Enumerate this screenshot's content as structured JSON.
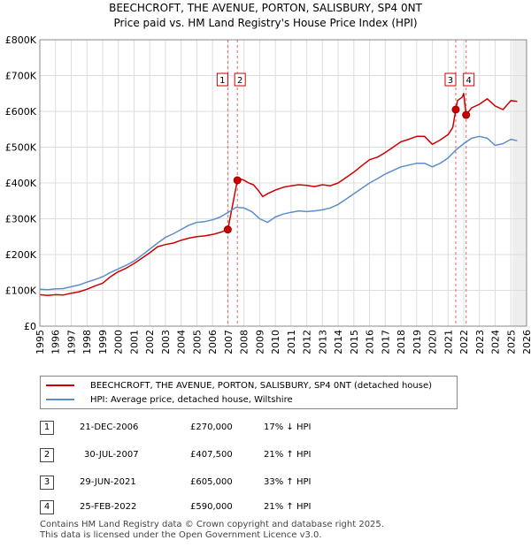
{
  "chart_data": {
    "type": "line",
    "title": "BEECHCROFT, THE AVENUE, PORTON, SALISBURY, SP4 0NT",
    "subtitle": "Price paid vs. HM Land Registry's House Price Index (HPI)",
    "y_ticks": [
      "£0",
      "£100K",
      "£200K",
      "£300K",
      "£400K",
      "£500K",
      "£600K",
      "£700K",
      "£800K"
    ],
    "x_ticks": [
      "1995",
      "1996",
      "1997",
      "1998",
      "1999",
      "2000",
      "2001",
      "2002",
      "2003",
      "2004",
      "2005",
      "2006",
      "2007",
      "2008",
      "2009",
      "2010",
      "2011",
      "2012",
      "2013",
      "2014",
      "2015",
      "2016",
      "2017",
      "2018",
      "2019",
      "2020",
      "2021",
      "2022",
      "2023",
      "2024",
      "2025",
      "2026"
    ],
    "ylim": [
      0,
      800000
    ],
    "xlim": [
      1995,
      2026
    ],
    "grid": true,
    "series": [
      {
        "name": "BEECHCROFT, THE AVENUE, PORTON, SALISBURY, SP4 0NT (detached house)",
        "color": "#cc0000",
        "x": [
          1995.0,
          1995.5,
          1996.0,
          1996.5,
          1997.0,
          1997.5,
          1998.0,
          1998.5,
          1999.0,
          1999.5,
          2000.0,
          2000.5,
          2001.0,
          2001.5,
          2002.0,
          2002.5,
          2003.0,
          2003.5,
          2004.0,
          2004.5,
          2005.0,
          2005.5,
          2006.0,
          2006.5,
          2006.97,
          2007.0,
          2007.58,
          2007.7,
          2008.0,
          2008.3,
          2008.6,
          2008.9,
          2009.2,
          2009.5,
          2010.0,
          2010.5,
          2011.0,
          2011.5,
          2012.0,
          2012.5,
          2013.0,
          2013.5,
          2014.0,
          2014.5,
          2015.0,
          2015.5,
          2016.0,
          2016.5,
          2017.0,
          2017.5,
          2018.0,
          2018.5,
          2019.0,
          2019.5,
          2020.0,
          2020.5,
          2021.0,
          2021.3,
          2021.49,
          2021.6,
          2021.9,
          2022.0,
          2022.15,
          2022.5,
          2023.0,
          2023.5,
          2024.0,
          2024.5,
          2025.0,
          2025.4
        ],
        "values": [
          88000,
          86000,
          88000,
          87000,
          92000,
          96000,
          103000,
          112000,
          120000,
          138000,
          152000,
          162000,
          175000,
          190000,
          205000,
          222000,
          228000,
          232000,
          240000,
          246000,
          250000,
          252000,
          256000,
          262000,
          270000,
          275000,
          407500,
          412000,
          408000,
          400000,
          395000,
          380000,
          362000,
          370000,
          380000,
          388000,
          392000,
          395000,
          393000,
          390000,
          395000,
          392000,
          400000,
          415000,
          430000,
          448000,
          465000,
          472000,
          485000,
          500000,
          515000,
          522000,
          530000,
          530000,
          508000,
          520000,
          535000,
          555000,
          605000,
          630000,
          640000,
          650000,
          590000,
          610000,
          620000,
          635000,
          615000,
          605000,
          630000,
          628000
        ]
      },
      {
        "name": "HPI: Average price, detached house, Wiltshire",
        "color": "#5b8ec9",
        "x": [
          1995.0,
          1995.5,
          1996.0,
          1996.5,
          1997.0,
          1997.5,
          1998.0,
          1998.5,
          1999.0,
          1999.5,
          2000.0,
          2000.5,
          2001.0,
          2001.5,
          2002.0,
          2002.5,
          2003.0,
          2003.5,
          2004.0,
          2004.5,
          2005.0,
          2005.5,
          2006.0,
          2006.5,
          2007.0,
          2007.5,
          2008.0,
          2008.5,
          2009.0,
          2009.5,
          2010.0,
          2010.5,
          2011.0,
          2011.5,
          2012.0,
          2012.5,
          2013.0,
          2013.5,
          2014.0,
          2014.5,
          2015.0,
          2015.5,
          2016.0,
          2016.5,
          2017.0,
          2017.5,
          2018.0,
          2018.5,
          2019.0,
          2019.5,
          2020.0,
          2020.5,
          2021.0,
          2021.5,
          2022.0,
          2022.5,
          2023.0,
          2023.5,
          2024.0,
          2024.5,
          2025.0,
          2025.4
        ],
        "values": [
          103000,
          102000,
          104000,
          105000,
          110000,
          115000,
          123000,
          130000,
          138000,
          150000,
          160000,
          170000,
          182000,
          198000,
          215000,
          232000,
          248000,
          258000,
          270000,
          282000,
          290000,
          292000,
          297000,
          305000,
          318000,
          332000,
          330000,
          320000,
          300000,
          290000,
          305000,
          313000,
          318000,
          322000,
          320000,
          322000,
          325000,
          330000,
          340000,
          355000,
          370000,
          385000,
          400000,
          412000,
          425000,
          435000,
          445000,
          450000,
          455000,
          455000,
          445000,
          455000,
          470000,
          492000,
          510000,
          525000,
          530000,
          525000,
          505000,
          510000,
          522000,
          518000
        ]
      }
    ],
    "transactions": [
      {
        "n": "1",
        "x": 2006.97,
        "price": 270000
      },
      {
        "n": "2",
        "x": 2007.58,
        "price": 407500
      },
      {
        "n": "3",
        "x": 2021.49,
        "price": 605000
      },
      {
        "n": "4",
        "x": 2022.15,
        "price": 590000
      }
    ],
    "shaded_period": [
      2025.1,
      2026
    ]
  },
  "legend": {
    "property": "BEECHCROFT, THE AVENUE, PORTON, SALISBURY, SP4 0NT (detached house)",
    "hpi": "HPI: Average price, detached house, Wiltshire"
  },
  "table": [
    {
      "n": "1",
      "date": "21-DEC-2006",
      "price": "£270,000",
      "hpi": "17% ↓ HPI"
    },
    {
      "n": "2",
      "date": "30-JUL-2007",
      "price": "£407,500",
      "hpi": "21% ↑ HPI"
    },
    {
      "n": "3",
      "date": "29-JUN-2021",
      "price": "£605,000",
      "hpi": "33% ↑ HPI"
    },
    {
      "n": "4",
      "date": "25-FEB-2022",
      "price": "£590,000",
      "hpi": "21% ↑ HPI"
    }
  ],
  "footer": {
    "line1": "Contains HM Land Registry data © Crown copyright and database right 2025.",
    "line2": "This data is licensed under the Open Government Licence v3.0."
  }
}
